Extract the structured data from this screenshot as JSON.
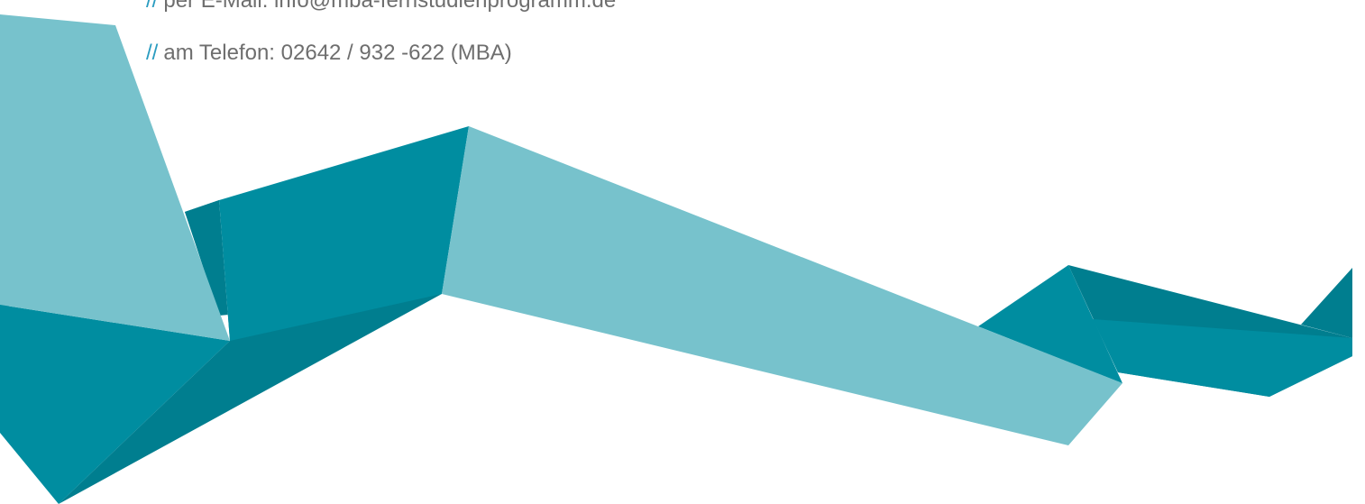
{
  "contact": {
    "marker": "//",
    "email_line": "per E-Mail: info@mba-fernstudienprogramm.de",
    "phone_line": "am Telefon: 02642 / 932 -622 (MBA)"
  },
  "colors": {
    "light_teal": "#77c2cc",
    "teal": "#008da0",
    "dark_teal": "#007e8f",
    "text_gray": "#6e6e6e",
    "marker_blue": "#2a9cc0"
  }
}
